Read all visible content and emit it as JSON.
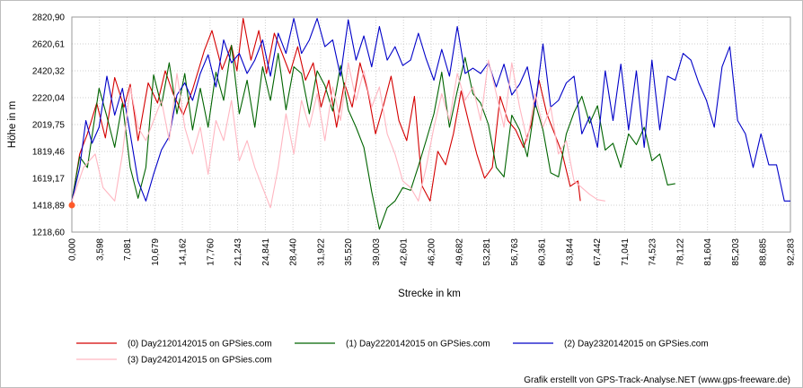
{
  "chart_data": {
    "type": "line",
    "xlabel": "Strecke  in  km",
    "ylabel": "Höhe  in  m",
    "xlim": [
      0.0,
      92.283
    ],
    "ylim": [
      1218.6,
      2820.9
    ],
    "grid": true,
    "legend_position": "bottom",
    "y_ticks": [
      "1218,60",
      "1418,89",
      "1619,17",
      "1819,46",
      "2019,75",
      "2220,04",
      "2420,32",
      "2620,61",
      "2820,90"
    ],
    "x_ticks": [
      "0,000",
      "3,598",
      "7,081",
      "10,679",
      "14,162",
      "17,760",
      "21,243",
      "24,841",
      "28,440",
      "31,922",
      "35,520",
      "39,003",
      "42,601",
      "46,200",
      "49,682",
      "53,281",
      "56,763",
      "60,361",
      "63,844",
      "67,442",
      "71,041",
      "74,523",
      "78,122",
      "81,604",
      "85,203",
      "88,685",
      "92,283"
    ],
    "start_marker": {
      "x": 0.0,
      "y": 1418.89
    },
    "series": [
      {
        "name": "(0) Day2120142015 on GPSies.com",
        "color": "#d40000",
        "x": [
          0,
          1,
          2,
          3.2,
          4.3,
          5.5,
          6.7,
          7.5,
          8.5,
          9.8,
          11,
          12,
          13,
          14.3,
          15.5,
          17,
          18,
          19.3,
          20.5,
          21.2,
          22,
          23,
          24,
          25,
          26,
          27,
          28,
          29,
          30,
          31,
          32,
          33,
          34,
          35,
          36,
          37,
          38,
          39,
          40,
          41,
          42,
          43,
          44,
          45,
          46,
          47,
          48,
          49,
          50,
          51,
          52,
          53,
          54,
          55,
          56,
          57,
          58,
          59,
          60,
          61,
          62,
          63,
          64,
          65,
          65.3
        ],
        "y": [
          1440,
          1800,
          1950,
          2180,
          1920,
          2370,
          2150,
          2320,
          1900,
          2330,
          2180,
          2420,
          2250,
          2090,
          2280,
          2570,
          2720,
          2430,
          2610,
          2420,
          2810,
          2500,
          2720,
          2400,
          2700,
          2550,
          2400,
          2600,
          2350,
          2480,
          2150,
          2350,
          2000,
          2330,
          2150,
          2480,
          2270,
          1950,
          2160,
          2380,
          2050,
          1900,
          2230,
          1560,
          1450,
          1820,
          1720,
          1950,
          2270,
          2030,
          1800,
          1620,
          1700,
          2230,
          2050,
          1980,
          1850,
          2020,
          2350,
          2100,
          1950,
          1800,
          1560,
          1600,
          1450
        ]
      },
      {
        "name": "(1) Day2220142015 on GPSies.com",
        "color": "#006400",
        "x": [
          0,
          1,
          2,
          3.5,
          4.5,
          5.5,
          6.5,
          7.5,
          8.5,
          9.5,
          10.5,
          11.5,
          12.5,
          13.5,
          14.5,
          15.5,
          16.5,
          17.5,
          18.5,
          19.5,
          20.5,
          21.5,
          22.5,
          23.5,
          24.5,
          25.5,
          26.5,
          27.5,
          28.5,
          29.5,
          30.5,
          31.5,
          32.5,
          33.5,
          34.5,
          35.5,
          36.5,
          37.5,
          38.5,
          39.5,
          40.5,
          41.5,
          42.5,
          43.5,
          44.5,
          45.5,
          46.5,
          47.5,
          48.5,
          49.5,
          50.5,
          51.5,
          52.5,
          53.5,
          54.5,
          55.5,
          56.5,
          57.5,
          58.5,
          59.5,
          60.5,
          61.5,
          62.5,
          63.5,
          64.5,
          65.5,
          66.5,
          67.5,
          68.5,
          69.5,
          70.5,
          71.5,
          72.5,
          73.5,
          74.5,
          75.5,
          76.5,
          77.5
        ],
        "y": [
          1450,
          1780,
          1700,
          2290,
          2080,
          1850,
          2180,
          1700,
          1470,
          1700,
          2390,
          2160,
          2480,
          2100,
          2400,
          1980,
          2290,
          2000,
          2410,
          2200,
          2610,
          2100,
          2350,
          2000,
          2450,
          2200,
          2550,
          2130,
          2450,
          2400,
          2100,
          2420,
          2310,
          2120,
          2460,
          2130,
          2000,
          1850,
          1520,
          1240,
          1400,
          1450,
          1550,
          1530,
          1710,
          1900,
          2100,
          2410,
          2000,
          2270,
          2520,
          2250,
          2180,
          2020,
          1700,
          1630,
          2090,
          1980,
          1780,
          2180,
          1980,
          1660,
          1630,
          1950,
          2110,
          2230,
          2030,
          2160,
          1830,
          1880,
          1700,
          1950,
          1870,
          2000,
          1750,
          1800,
          1570,
          1580
        ]
      },
      {
        "name": "(2) Day2320142015 on GPSies.com",
        "color": "#0000c8",
        "x": [
          0,
          1,
          1.8,
          2.6,
          3.5,
          4.5,
          5.5,
          6.5,
          7.5,
          8.5,
          9.5,
          10.5,
          11.5,
          12.5,
          13.5,
          14.5,
          15.5,
          16.5,
          17.5,
          18.5,
          19.5,
          20.5,
          21.5,
          22.5,
          23.5,
          24.5,
          25.5,
          26.5,
          27.5,
          28.5,
          29.5,
          30.5,
          31.5,
          32.5,
          33.5,
          34.5,
          35.5,
          36.5,
          37.5,
          38.5,
          39.5,
          40.5,
          41.5,
          42.5,
          43.5,
          44.5,
          45.5,
          46.5,
          47.5,
          48.5,
          49.5,
          50.5,
          51.5,
          52.5,
          53.5,
          54.5,
          55.5,
          56.5,
          57.5,
          58.5,
          59.5,
          60.5,
          61.5,
          62.5,
          63.5,
          64.5,
          65.5,
          66.5,
          67.5,
          68.5,
          69.5,
          70.5,
          71.5,
          72.5,
          73.5,
          74.5,
          75.5,
          76.5,
          77.5,
          78.5,
          79.5,
          80.5,
          81.5,
          82.5,
          83.5,
          84.5,
          85.5,
          86.5,
          87.5,
          88.5,
          89.5,
          90.5,
          91.5,
          92.283
        ],
        "y": [
          1450,
          1700,
          2050,
          1880,
          2000,
          2380,
          2090,
          2290,
          1950,
          1600,
          1450,
          1650,
          1830,
          1930,
          2240,
          2330,
          2200,
          2400,
          2540,
          2300,
          2650,
          2480,
          2550,
          2400,
          2500,
          2650,
          2380,
          2700,
          2550,
          2810,
          2550,
          2650,
          2810,
          2600,
          2650,
          2380,
          2800,
          2500,
          2680,
          2450,
          2750,
          2500,
          2600,
          2460,
          2500,
          2700,
          2510,
          2350,
          2580,
          2380,
          2750,
          2400,
          2440,
          2400,
          2480,
          2300,
          2470,
          2240,
          2320,
          2450,
          2150,
          2620,
          2150,
          2200,
          2330,
          2380,
          1950,
          2080,
          1850,
          2420,
          2050,
          2470,
          1980,
          2420,
          1850,
          2500,
          1980,
          2380,
          2350,
          2550,
          2500,
          2330,
          2200,
          2000,
          2450,
          2600,
          2050,
          1950,
          1700,
          1950,
          1720,
          1720,
          1450,
          1450
        ]
      },
      {
        "name": "(3) Day2420142015 on GPSies.com",
        "color": "#ffb6c1",
        "x": [
          0,
          1.5,
          3,
          4,
          5.5,
          6.5,
          7.5,
          8.5,
          9.5,
          10.5,
          11.5,
          12.5,
          13.5,
          14.5,
          15.5,
          16.5,
          17.5,
          18.5,
          19.5,
          20.5,
          21.5,
          22.5,
          23.5,
          24.5,
          25.5,
          26.5,
          27.5,
          28.5,
          29.5,
          30.5,
          31.5,
          32.5,
          33.5,
          34.5,
          35.5,
          36.5,
          37.5,
          38.5,
          39.5,
          40.5,
          41.5,
          42.5,
          43.5,
          44.5,
          45.5,
          46.5,
          47.5,
          48.5,
          49.5,
          50.5,
          51.5,
          52.5,
          53.5,
          54.5,
          55.5,
          56.5,
          57.5,
          58.5,
          59.5,
          60.5,
          61.5,
          62.5,
          63.5,
          64.5,
          65.5,
          66.5,
          67.5,
          68.5
        ],
        "y": [
          1450,
          1700,
          1800,
          1550,
          1450,
          1800,
          2300,
          2000,
          1900,
          2050,
          2200,
          1900,
          2400,
          2000,
          1800,
          2000,
          1650,
          2050,
          1900,
          2200,
          1750,
          1900,
          1700,
          1550,
          1400,
          1700,
          2100,
          1800,
          2200,
          2000,
          2250,
          1900,
          2300,
          2050,
          2480,
          2200,
          2420,
          2150,
          2300,
          1950,
          1800,
          1600,
          1550,
          1450,
          1700,
          2000,
          2250,
          2050,
          2400,
          2200,
          2300,
          2050,
          2500,
          2250,
          2000,
          2480,
          2150,
          1900,
          2250,
          2000,
          2150,
          1800,
          1900,
          1600,
          1550,
          1500,
          1460,
          1450
        ]
      }
    ]
  },
  "legend": {
    "items": [
      {
        "label": "(0) Day2120142015 on GPSies.com",
        "color": "#d40000"
      },
      {
        "label": "(1) Day2220142015 on GPSies.com",
        "color": "#006400"
      },
      {
        "label": "(2) Day2320142015 on GPSies.com",
        "color": "#0000c8"
      },
      {
        "label": "(3) Day2420142015 on GPSies.com",
        "color": "#ffb6c1"
      }
    ]
  },
  "footer": {
    "credit": "Grafik erstellt von GPS-Track-Analyse.NET (www.gps-freeware.de)"
  }
}
